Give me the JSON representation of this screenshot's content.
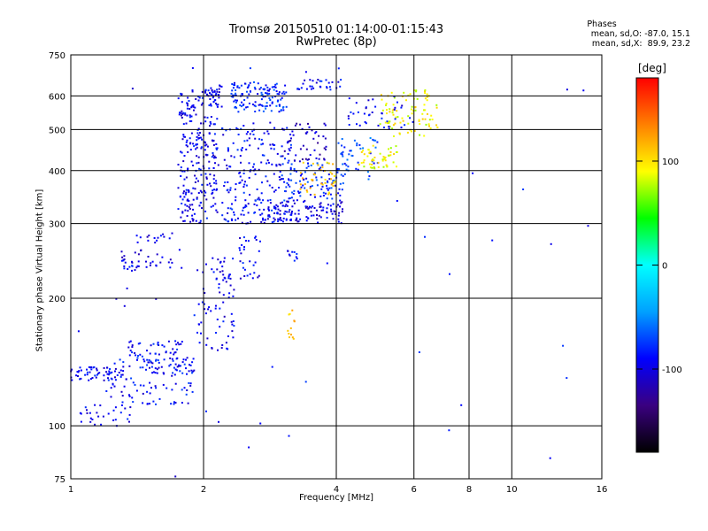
{
  "chart_data": {
    "type": "scatter",
    "title": "Tromsø 20150510 01:14:00-01:15:43",
    "subtitle": "RwPretec (8p)",
    "xlabel": "Frequency [MHz]",
    "ylabel": "Stationary phase Virtual Height [km]",
    "x_scale": "log",
    "y_scale": "log",
    "xlim": [
      1,
      16
    ],
    "ylim": [
      75,
      750
    ],
    "x_ticks": [
      1,
      2,
      4,
      6,
      8,
      10,
      16
    ],
    "y_ticks": [
      75,
      100,
      200,
      300,
      400,
      500,
      600,
      750
    ],
    "grid": true,
    "stats": {
      "heading": "Phases",
      "o_line": "mean, sd,O: -87.0, 15.1",
      "x_line": "mean, sd,X:  89.9, 23.2"
    },
    "colorbar": {
      "label": "[deg]",
      "range": [
        -180,
        180
      ],
      "ticks": [
        -100,
        0,
        100
      ],
      "colors": [
        "#000000",
        "#3a0080",
        "#0000ff",
        "#00a0ff",
        "#00ffff",
        "#00ff00",
        "#ffff00",
        "#ff8000",
        "#ff0000"
      ]
    },
    "clusters": [
      {
        "x": [
          1.0,
          1.35
        ],
        "y": [
          128,
          138
        ],
        "n": 60,
        "phase": -95
      },
      {
        "x": [
          1.35,
          1.9
        ],
        "y": [
          132,
          160
        ],
        "n": 90,
        "phase": -90
      },
      {
        "x": [
          1.9,
          2.35
        ],
        "y": [
          150,
          250
        ],
        "n": 80,
        "phase": -95
      },
      {
        "x": [
          1.05,
          1.4
        ],
        "y": [
          100,
          112
        ],
        "n": 30,
        "phase": -95
      },
      {
        "x": [
          1.2,
          1.9
        ],
        "y": [
          112,
          145
        ],
        "n": 80,
        "phase": -90
      },
      {
        "x": [
          1.3,
          1.7
        ],
        "y": [
          230,
          260
        ],
        "n": 40,
        "phase": -100
      },
      {
        "x": [
          1.4,
          1.7
        ],
        "y": [
          270,
          285
        ],
        "n": 15,
        "phase": -100
      },
      {
        "x": [
          1.75,
          2.15
        ],
        "y": [
          300,
          620
        ],
        "n": 260,
        "phase": -95
      },
      {
        "x": [
          2.05,
          2.2
        ],
        "y": [
          560,
          640
        ],
        "n": 30,
        "phase": -95
      },
      {
        "x": [
          2.2,
          3.2
        ],
        "y": [
          300,
          520
        ],
        "n": 220,
        "phase": -90
      },
      {
        "x": [
          2.3,
          3.1
        ],
        "y": [
          550,
          650
        ],
        "n": 130,
        "phase": -80
      },
      {
        "x": [
          2.4,
          2.7
        ],
        "y": [
          220,
          280
        ],
        "n": 30,
        "phase": -95
      },
      {
        "x": [
          2.8,
          4.2
        ],
        "y": [
          300,
          340
        ],
        "n": 110,
        "phase": -100
      },
      {
        "x": [
          3.0,
          4.2
        ],
        "y": [
          340,
          420
        ],
        "n": 90,
        "phase": -80
      },
      {
        "x": [
          3.0,
          3.8
        ],
        "y": [
          420,
          520
        ],
        "n": 50,
        "phase": -110
      },
      {
        "x": [
          3.3,
          4.0
        ],
        "y": [
          350,
          420
        ],
        "n": 40,
        "phase": 110
      },
      {
        "x": [
          4.0,
          5.0
        ],
        "y": [
          380,
          480
        ],
        "n": 50,
        "phase": -70
      },
      {
        "x": [
          4.5,
          5.5
        ],
        "y": [
          400,
          460
        ],
        "n": 50,
        "phase": 90
      },
      {
        "x": [
          5.0,
          6.8
        ],
        "y": [
          480,
          620
        ],
        "n": 90,
        "phase": 90
      },
      {
        "x": [
          4.2,
          6.0
        ],
        "y": [
          500,
          600
        ],
        "n": 40,
        "phase": -95
      },
      {
        "x": [
          3.1,
          3.25
        ],
        "y": [
          160,
          190
        ],
        "n": 12,
        "phase": 110
      },
      {
        "x": [
          3.1,
          3.3
        ],
        "y": [
          245,
          260
        ],
        "n": 10,
        "phase": -95
      },
      {
        "x": [
          3.2,
          4.1
        ],
        "y": [
          620,
          660
        ],
        "n": 30,
        "phase": -90
      },
      {
        "x": [
          1.0,
          16.0
        ],
        "y": [
          75,
          700
        ],
        "n": 45,
        "phase": -90
      }
    ]
  }
}
